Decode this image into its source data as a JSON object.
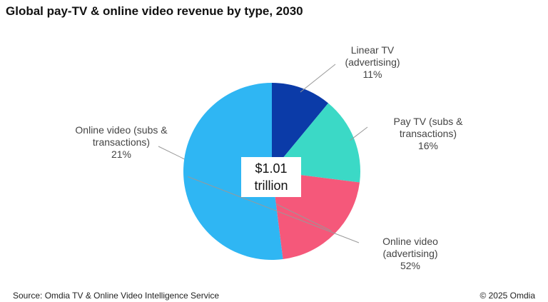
{
  "chart_data": {
    "type": "pie",
    "title": "Global pay-TV & online video revenue by type, 2030",
    "categories": [
      "Linear TV (advertising)",
      "Pay TV (subs & transactions)",
      "Online video (subs & transactions)",
      "Online video (advertising)"
    ],
    "values": [
      11,
      16,
      21,
      52
    ],
    "value_labels": [
      "11%",
      "16%",
      "21%",
      "52%"
    ],
    "colors": [
      "#0b3ba8",
      "#3bd9c6",
      "#f5587a",
      "#2fb6f3"
    ],
    "center_label": "$1.01 trillion",
    "source": "Source: Omdia TV & Online Video Intelligence Service",
    "copyright": "© 2025 Omdia"
  }
}
